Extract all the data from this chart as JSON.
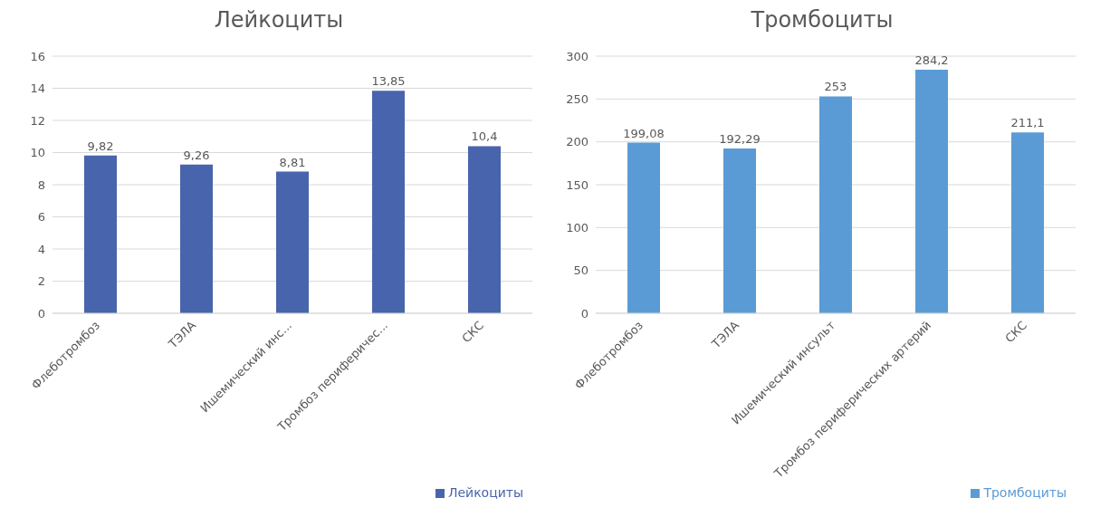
{
  "chart_data": [
    {
      "type": "bar",
      "title": "Лейкоциты",
      "categories": [
        "Флеботромбоз",
        "ТЭЛА",
        "Ишемический инс...",
        "Тромбоз периферичес...",
        "СКС"
      ],
      "series": [
        {
          "name": "Лейкоциты",
          "color": "#4864ac",
          "values": [
            9.82,
            9.26,
            8.81,
            13.85,
            10.4
          ],
          "value_labels": [
            "9,82",
            "9,26",
            "8,81",
            "13,85",
            "10,4"
          ]
        }
      ],
      "ylim": [
        0,
        16
      ],
      "yticks": [
        0,
        2,
        4,
        6,
        8,
        10,
        12,
        14,
        16
      ],
      "grid": "y",
      "legend": "bottom right"
    },
    {
      "type": "bar",
      "title": "Тромбоциты",
      "categories": [
        "Флеботромбоз",
        "ТЭЛА",
        "Ишемический инсульт",
        "Тромбоз периферических артерий",
        "СКС"
      ],
      "series": [
        {
          "name": "Тромбоциты",
          "color": "#5b9bd5",
          "values": [
            199.08,
            192.29,
            253,
            284.2,
            211.1
          ],
          "value_labels": [
            "199,08",
            "192,29",
            "253",
            "284,2",
            "211,1"
          ]
        }
      ],
      "ylim": [
        0,
        300
      ],
      "yticks": [
        0,
        50,
        100,
        150,
        200,
        250,
        300
      ],
      "grid": "y",
      "legend": "bottom right"
    }
  ]
}
